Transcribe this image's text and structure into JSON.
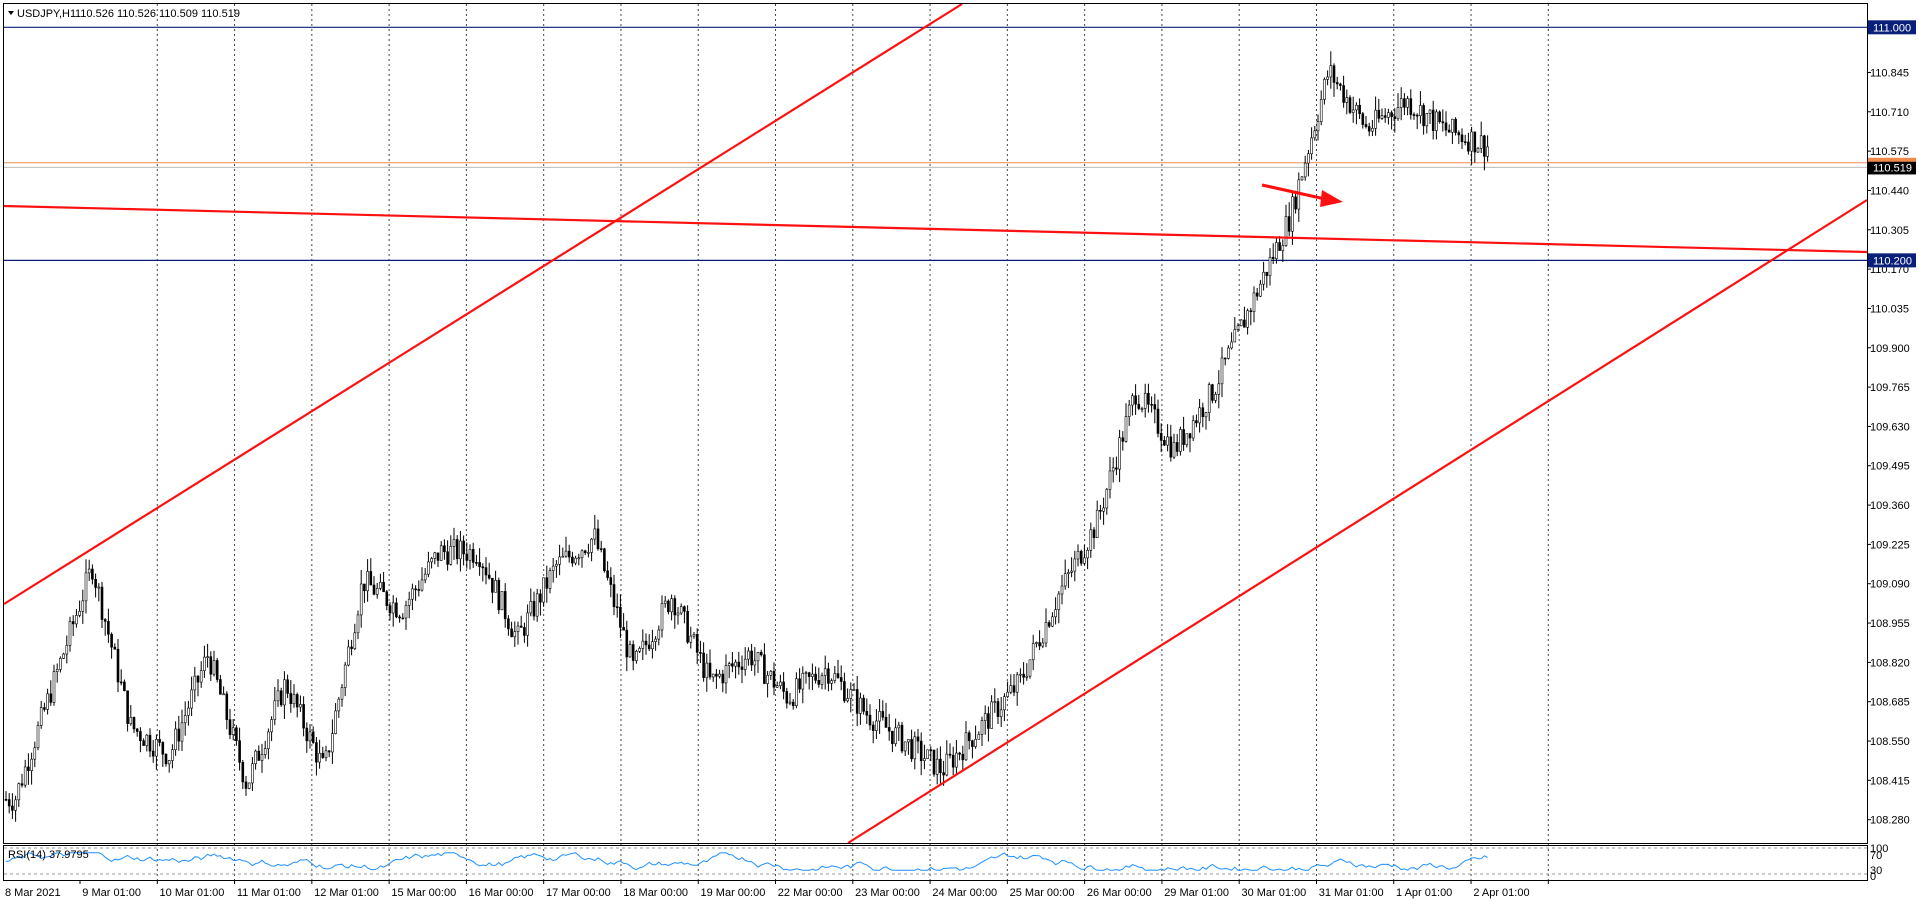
{
  "chart_data": {
    "type": "candlestick",
    "symbol_header": "USDJPY,H1",
    "ohlc_header": "110.526 110.526 110.509 110.519",
    "rsi_label": "RSI(14) 37.9795",
    "price_range": [
      108.2,
      111.08
    ],
    "x_labels": [
      "8 Mar 2021",
      "9 Mar 01:00",
      "10 Mar 01:00",
      "11 Mar 01:00",
      "12 Mar 01:00",
      "15 Mar 00:00",
      "16 Mar 00:00",
      "17 Mar 00:00",
      "18 Mar 00:00",
      "19 Mar 00:00",
      "22 Mar 00:00",
      "23 Mar 00:00",
      "24 Mar 00:00",
      "25 Mar 00:00",
      "26 Mar 00:00",
      "29 Mar 01:00",
      "30 Mar 01:00",
      "31 Mar 01:00",
      "1 Apr 01:00",
      "2 Apr 01:00"
    ],
    "y_ticks": [
      "110.845",
      "110.710",
      "110.575",
      "110.440",
      "110.305",
      "110.170",
      "110.035",
      "109.900",
      "109.765",
      "109.630",
      "109.495",
      "109.360",
      "109.225",
      "109.090",
      "108.955",
      "108.820",
      "108.685",
      "108.550",
      "108.415",
      "108.280"
    ],
    "horizontal_levels": [
      {
        "label": "111.000",
        "price": 111.0,
        "color": "#0a1f7a"
      },
      {
        "label": "110.200",
        "price": 110.2,
        "color": "#0a1f7a"
      }
    ],
    "bid_ask": {
      "bid": "110.519",
      "bid_price": 110.519,
      "ask_price": 110.535,
      "color": "#f08a4b"
    },
    "rsi_levels": [
      "100",
      "70",
      "30",
      "0"
    ],
    "trendlines_color": "#ff1010",
    "price_anchors": [
      [
        "8 Mar 2021",
        108.35
      ],
      [
        "9 Mar 01:00",
        109.15
      ],
      [
        "9 Mar 01:00",
        108.6
      ],
      [
        "10 Mar 01:00",
        108.5
      ],
      [
        "10 Mar 01:00",
        108.85
      ],
      [
        "11 Mar 01:00",
        108.4
      ],
      [
        "11 Mar 01:00",
        108.75
      ],
      [
        "12 Mar 01:00",
        108.45
      ],
      [
        "12 Mar 01:00",
        109.1
      ],
      [
        "15 Mar 00:00",
        109.0
      ],
      [
        "15 Mar 00:00",
        109.2
      ],
      [
        "16 Mar 00:00",
        109.2
      ],
      [
        "16 Mar 00:00",
        108.9
      ],
      [
        "17 Mar 00:00",
        109.15
      ],
      [
        "17 Mar 00:00",
        109.25
      ],
      [
        "18 Mar 00:00",
        108.8
      ],
      [
        "18 Mar 00:00",
        109.05
      ],
      [
        "19 Mar 00:00",
        108.75
      ],
      [
        "19 Mar 00:00",
        108.85
      ],
      [
        "22 Mar 00:00",
        108.7
      ],
      [
        "22 Mar 00:00",
        108.8
      ],
      [
        "23 Mar 00:00",
        108.65
      ],
      [
        "24 Mar 00:00",
        108.45
      ],
      [
        "25 Mar 00:00",
        108.75
      ],
      [
        "25 Mar 00:00",
        109.05
      ],
      [
        "26 Mar 00:00",
        109.3
      ],
      [
        "26 Mar 00:00",
        109.75
      ],
      [
        "29 Mar 01:00",
        109.55
      ],
      [
        "29 Mar 01:00",
        109.75
      ],
      [
        "30 Mar 01:00",
        110.05
      ],
      [
        "30 Mar 01:00",
        110.35
      ],
      [
        "31 Mar 01:00",
        110.85
      ],
      [
        "31 Mar 01:00",
        110.65
      ],
      [
        "1 Apr 01:00",
        110.75
      ],
      [
        "1 Apr 01:00",
        110.65
      ],
      [
        "2 Apr 01:00",
        110.6
      ],
      [
        "2 Apr 01:00",
        110.52
      ]
    ]
  }
}
